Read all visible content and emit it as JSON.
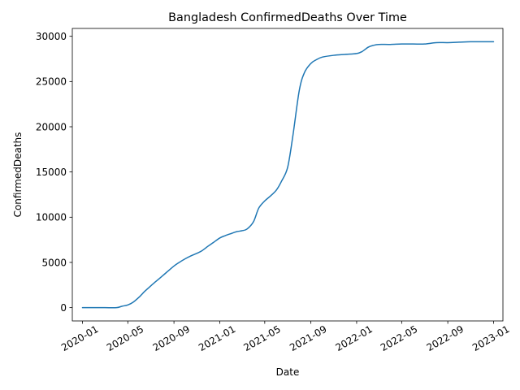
{
  "chart_data": {
    "type": "line",
    "title": "Bangladesh  ConfirmedDeaths Over Time",
    "xlabel": "Date",
    "ylabel": "ConfirmedDeaths",
    "x_range": [
      "2019-12-05",
      "2023-01-26"
    ],
    "ylim": [
      -1470,
      30870
    ],
    "grid": false,
    "x_ticks": [
      "2020-01",
      "2020-05",
      "2020-09",
      "2021-01",
      "2021-05",
      "2021-09",
      "2022-01",
      "2022-05",
      "2022-09",
      "2023-01"
    ],
    "y_ticks": [
      0,
      5000,
      10000,
      15000,
      20000,
      25000,
      30000
    ],
    "series": [
      {
        "color": "#1f77b4",
        "x": [
          "2020-01-01",
          "2020-02-01",
          "2020-03-01",
          "2020-04-01",
          "2020-04-15",
          "2020-05-01",
          "2020-05-15",
          "2020-06-01",
          "2020-06-15",
          "2020-07-01",
          "2020-07-15",
          "2020-08-01",
          "2020-08-15",
          "2020-09-01",
          "2020-09-15",
          "2020-10-01",
          "2020-10-15",
          "2020-11-01",
          "2020-11-15",
          "2020-12-01",
          "2020-12-15",
          "2021-01-01",
          "2021-01-15",
          "2021-02-01",
          "2021-02-15",
          "2021-03-01",
          "2021-03-15",
          "2021-04-01",
          "2021-04-15",
          "2021-05-01",
          "2021-05-15",
          "2021-06-01",
          "2021-06-15",
          "2021-07-01",
          "2021-07-15",
          "2021-08-01",
          "2021-08-15",
          "2021-09-01",
          "2021-09-15",
          "2021-10-01",
          "2021-11-01",
          "2021-12-01",
          "2022-01-01",
          "2022-01-15",
          "2022-02-01",
          "2022-02-15",
          "2022-03-01",
          "2022-04-01",
          "2022-05-01",
          "2022-06-01",
          "2022-07-01",
          "2022-08-01",
          "2022-09-01",
          "2022-10-01",
          "2022-11-01",
          "2022-12-01",
          "2023-01-01"
        ],
        "y": [
          0,
          0,
          0,
          0,
          150,
          300,
          600,
          1200,
          1800,
          2400,
          2900,
          3500,
          4000,
          4600,
          5000,
          5400,
          5700,
          6000,
          6300,
          6800,
          7200,
          7700,
          7950,
          8200,
          8400,
          8500,
          8700,
          9500,
          11000,
          11800,
          12300,
          13000,
          14000,
          15500,
          19000,
          24000,
          26000,
          27000,
          27400,
          27700,
          27900,
          28000,
          28100,
          28300,
          28800,
          29000,
          29100,
          29100,
          29150,
          29150,
          29150,
          29300,
          29300,
          29350,
          29400,
          29400,
          29400
        ]
      }
    ]
  }
}
